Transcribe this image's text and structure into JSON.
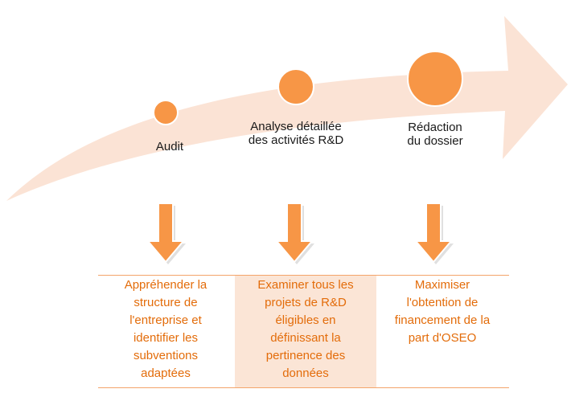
{
  "colors": {
    "arrow_fill": "#fbe3d5",
    "circle_fill": "#f79646",
    "circle_stroke": "#ffffff",
    "down_arrow_fill": "#f79646",
    "down_arrow_shadow": "#e0e0e0",
    "column_text": "#e36c0a",
    "highlight_bg": "#fbe5d6",
    "table_line": "#f4a46a",
    "label_text": "#1a1a1a"
  },
  "stages": [
    {
      "label": "Audit"
    },
    {
      "label": "Analyse détaillée\ndes activités R&D"
    },
    {
      "label": "Rédaction\ndu dossier"
    }
  ],
  "columns": [
    {
      "text": "Appréhender la\nstructure  de\nl'entreprise et\nidentifier les\nsubventions\nadaptées",
      "highlighted": false
    },
    {
      "text": "Examiner tous les\nprojets de R&D\néligibles en\ndéfinissant la\npertinence des\ndonnées",
      "highlighted": true
    },
    {
      "text": "Maximiser\nl'obtention de\nfinancement de la\npart d'OSEO",
      "highlighted": false
    }
  ]
}
